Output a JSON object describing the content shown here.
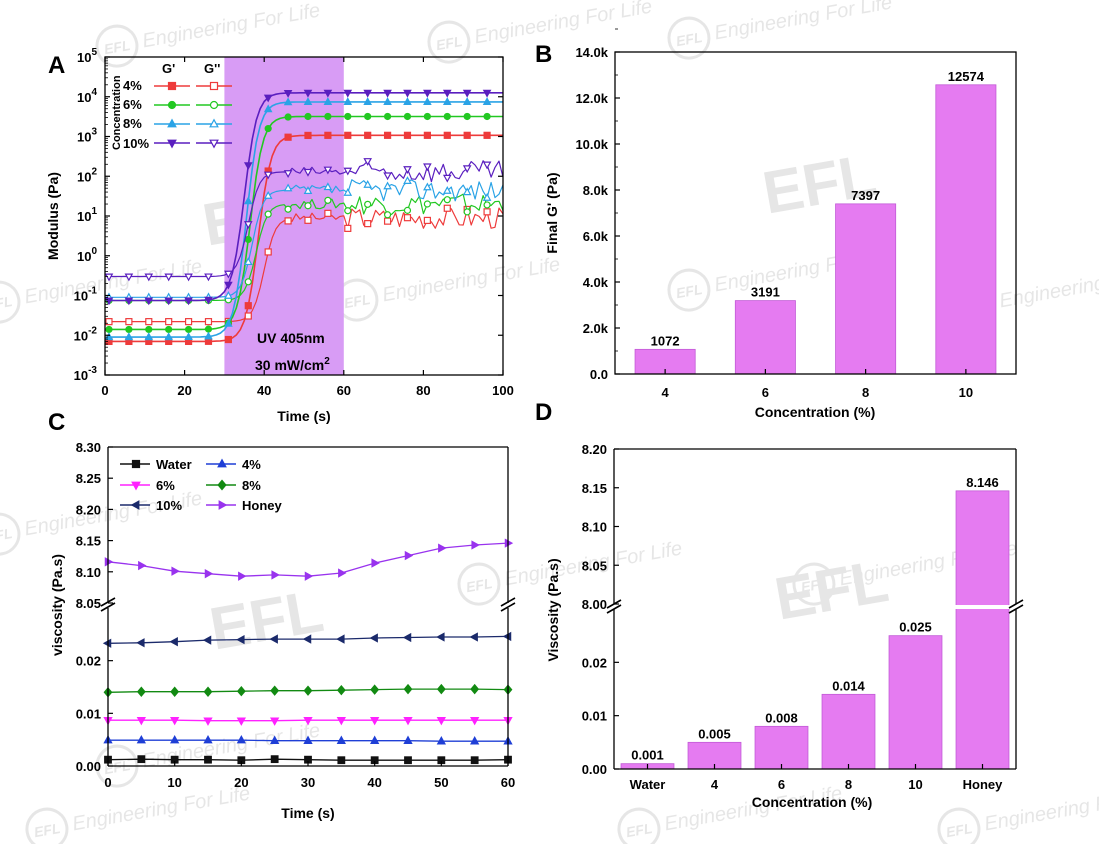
{
  "figure": {
    "colors": {
      "p4": "#ee3b3b",
      "p6": "#22c822",
      "p8": "#2aa3e6",
      "p10": "#5a1fbf",
      "water": "#111111",
      "c_4": "#1f3fd6",
      "c_6": "#ff22ff",
      "c_8": "#128a12",
      "c_10": "#1b2a6b",
      "honey": "#9933ee",
      "bar": "#e57bf1",
      "bar_edge": "#c25ad6",
      "uv_band": "#d89cf5"
    },
    "watermark_text": "Engineering For Life",
    "watermark_logo": "EFL"
  },
  "chart_data": [
    {
      "panel": "A",
      "type": "line",
      "xlabel": "Time (s)",
      "ylabel": "Modulus (Pa)",
      "xlim": [
        0,
        100
      ],
      "ylim": [
        0.001,
        100000
      ],
      "yscale": "log",
      "xticks": [
        "0",
        "20",
        "40",
        "60",
        "80",
        "100"
      ],
      "yticks": [
        "10^-3",
        "10^-2",
        "10^-1",
        "10^0",
        "10^1",
        "10^2",
        "10^3",
        "10^4",
        "10^5"
      ],
      "legend_header_storage": "G'",
      "legend_header_loss": "G''",
      "legend_side_label": "Concentration",
      "legend_placement": "top-left",
      "uv_band": {
        "x_start": 30,
        "x_end": 60,
        "label_line1": "UV 405nm",
        "label_line2": "30 mW/cm",
        "label_sup": "2"
      },
      "series": [
        {
          "name": "4%",
          "color_key": "p4",
          "Gp_start": 0.007,
          "Gp_end": 1070,
          "Gp_onset": 38.5,
          "Gpp_start": 0.022,
          "Gpp_end": 9,
          "Gpp_onset": 40
        },
        {
          "name": "6%",
          "color_key": "p6",
          "Gp_start": 0.014,
          "Gp_end": 3190,
          "Gp_onset": 36.5,
          "Gpp_start": 0.075,
          "Gpp_end": 20,
          "Gpp_onset": 38
        },
        {
          "name": "8%",
          "color_key": "p8",
          "Gp_start": 0.009,
          "Gp_end": 7400,
          "Gp_onset": 35.5,
          "Gpp_start": 0.09,
          "Gpp_end": 45,
          "Gpp_onset": 37
        },
        {
          "name": "10%",
          "color_key": "p10",
          "Gp_start": 0.075,
          "Gp_end": 12570,
          "Gp_onset": 35,
          "Gpp_start": 0.3,
          "Gpp_end": 130,
          "Gpp_onset": 36
        }
      ]
    },
    {
      "panel": "B",
      "type": "bar",
      "xlabel": "Concentration (%)",
      "ylabel": "Final G' (Pa)",
      "categories": [
        "4",
        "6",
        "8",
        "10"
      ],
      "values": [
        1072,
        3191,
        7397,
        12574
      ],
      "ylim": [
        0,
        14000
      ],
      "yticks": [
        "0.0",
        "2.0k",
        "4.0k",
        "6.0k",
        "8.0k",
        "10.0k",
        "12.0k",
        "14.0k"
      ]
    },
    {
      "panel": "C",
      "type": "line",
      "xlabel": "Time (s)",
      "ylabel": "viscosity (Pa.s)",
      "xlim": [
        0,
        60
      ],
      "x": [
        0,
        5,
        10,
        15,
        20,
        25,
        30,
        35,
        40,
        45,
        50,
        55,
        60
      ],
      "xticks": [
        "0",
        "10",
        "20",
        "30",
        "40",
        "50",
        "60"
      ],
      "y_break": {
        "lower_range": [
          0,
          0.03
        ],
        "upper_range": [
          8.05,
          8.3
        ]
      },
      "lower_yticks": [
        "0.00",
        "0.01",
        "0.02"
      ],
      "upper_yticks": [
        "8.05",
        "8.10",
        "8.15",
        "8.20",
        "8.25",
        "8.30"
      ],
      "legend_placement": "top-left",
      "series": [
        {
          "name": "Water",
          "color_key": "water",
          "marker": "square",
          "values": [
            0.0012,
            0.0013,
            0.0012,
            0.0012,
            0.0011,
            0.0013,
            0.0012,
            0.0011,
            0.0011,
            0.0011,
            0.0011,
            0.0011,
            0.0012
          ]
        },
        {
          "name": "4%",
          "color_key": "c_4",
          "marker": "triangle-up",
          "values": [
            0.0049,
            0.0049,
            0.0049,
            0.0049,
            0.0049,
            0.0048,
            0.0048,
            0.0048,
            0.0048,
            0.0048,
            0.0047,
            0.0047,
            0.0047
          ]
        },
        {
          "name": "6%",
          "color_key": "c_6",
          "marker": "triangle-down",
          "values": [
            0.0087,
            0.0087,
            0.0087,
            0.0086,
            0.0086,
            0.0086,
            0.0087,
            0.0087,
            0.0087,
            0.0087,
            0.0087,
            0.0087,
            0.0087
          ]
        },
        {
          "name": "8%",
          "color_key": "c_8",
          "marker": "diamond",
          "values": [
            0.014,
            0.0141,
            0.0141,
            0.0141,
            0.0142,
            0.0143,
            0.0143,
            0.0144,
            0.0145,
            0.0146,
            0.0146,
            0.0146,
            0.0145
          ]
        },
        {
          "name": "10%",
          "color_key": "c_10",
          "marker": "triangle-left",
          "values": [
            0.0233,
            0.0234,
            0.0236,
            0.0239,
            0.024,
            0.0241,
            0.0241,
            0.0241,
            0.0243,
            0.0244,
            0.0245,
            0.0245,
            0.0246
          ]
        },
        {
          "name": "Honey",
          "color_key": "honey",
          "marker": "triangle-right",
          "values": [
            8.116,
            8.11,
            8.101,
            8.097,
            8.093,
            8.095,
            8.093,
            8.098,
            8.114,
            8.126,
            8.138,
            8.143,
            8.146
          ]
        }
      ]
    },
    {
      "panel": "D",
      "type": "bar",
      "xlabel": "Concentration (%)",
      "ylabel": "Viscosity (Pa.s)",
      "categories": [
        "Water",
        "4",
        "6",
        "8",
        "10",
        "Honey"
      ],
      "values": [
        0.001,
        0.005,
        0.008,
        0.014,
        0.025,
        8.146
      ],
      "value_labels": [
        "0.001",
        "0.005",
        "0.008",
        "0.014",
        "0.025",
        "8.146"
      ],
      "y_break": {
        "lower_range": [
          0,
          0.03
        ],
        "upper_range": [
          8.0,
          8.2
        ]
      },
      "lower_yticks": [
        "0.00",
        "0.01",
        "0.02"
      ],
      "upper_yticks": [
        "8.00",
        "8.05",
        "8.10",
        "8.15",
        "8.20"
      ]
    }
  ]
}
